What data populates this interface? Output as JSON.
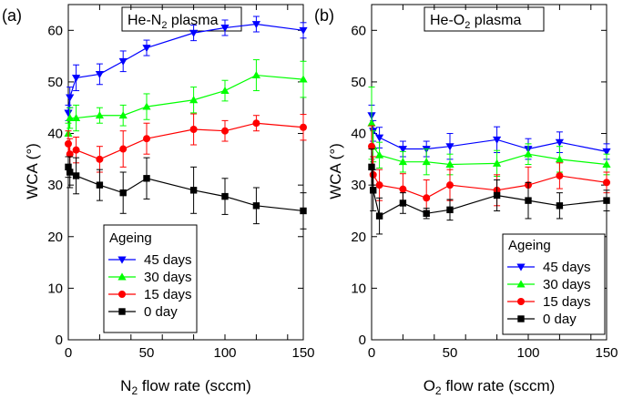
{
  "chart_data": [
    {
      "type": "line",
      "panel_label": "(a)",
      "title": {
        "prefix": "He-N",
        "sub": "2",
        "suffix": " plasma"
      },
      "xlabel": {
        "prefix": "N",
        "sub": "2",
        "suffix": " flow rate (sccm)"
      },
      "ylabel": "WCA (°)",
      "xlim": [
        0,
        150
      ],
      "ylim": [
        0,
        65
      ],
      "xticks": [
        0,
        20,
        40,
        60,
        80,
        100,
        120,
        140
      ],
      "xtick_labels": [
        "0",
        "50",
        "100",
        "150"
      ],
      "xtick_label_values": [
        0,
        50,
        100,
        150
      ],
      "yticks": [
        0,
        10,
        20,
        30,
        40,
        50,
        60
      ],
      "grid": false,
      "legend": {
        "title": "Ageing",
        "position": "bottom-left"
      },
      "series": [
        {
          "name": "45 days",
          "color": "#0000ff",
          "marker": "triangle-down",
          "x": [
            0,
            1,
            5,
            20,
            35,
            50,
            80,
            100,
            120,
            150
          ],
          "y": [
            44,
            47,
            50.8,
            51.5,
            54,
            56.6,
            59.5,
            60.5,
            61.2,
            60
          ],
          "err": [
            1.5,
            2.0,
            2.5,
            2.0,
            2.0,
            1.5,
            1.5,
            1.5,
            1.5,
            1.5
          ]
        },
        {
          "name": "30 days",
          "color": "#00ff00",
          "marker": "triangle-up",
          "x": [
            0,
            1,
            5,
            20,
            35,
            50,
            80,
            100,
            120,
            150
          ],
          "y": [
            40,
            43,
            43,
            43.5,
            43.5,
            45.2,
            46.5,
            48.3,
            51.3,
            50.5
          ],
          "err": [
            2.0,
            2.0,
            2.5,
            1.5,
            2.0,
            2.5,
            2.5,
            2.0,
            3.0,
            3.5
          ]
        },
        {
          "name": "15 days",
          "color": "#ff0000",
          "marker": "circle",
          "x": [
            0,
            1,
            5,
            20,
            35,
            50,
            80,
            100,
            120,
            150
          ],
          "y": [
            38,
            36,
            36.8,
            35,
            37,
            39,
            40.8,
            40.5,
            42,
            41.2
          ],
          "err": [
            2.5,
            3.0,
            2.5,
            2.5,
            3.5,
            3.0,
            3.0,
            2.0,
            1.5,
            2.5
          ]
        },
        {
          "name": "0 day",
          "color": "#000000",
          "marker": "square",
          "x": [
            0,
            1,
            5,
            20,
            35,
            50,
            80,
            100,
            120,
            150
          ],
          "y": [
            33.5,
            32.5,
            31.8,
            30,
            28.5,
            31.3,
            29,
            27.8,
            26,
            25
          ],
          "err": [
            2.0,
            3.0,
            3.5,
            3.0,
            4.0,
            4.0,
            4.5,
            3.5,
            3.5,
            3.5
          ]
        }
      ]
    },
    {
      "type": "line",
      "panel_label": "(b)",
      "title": {
        "prefix": "He-O",
        "sub": "2",
        "suffix": " plasma"
      },
      "xlabel": {
        "prefix": "O",
        "sub": "2",
        "suffix": " flow rate (sccm)"
      },
      "ylabel": "WCA (°)",
      "xlim": [
        0,
        150
      ],
      "ylim": [
        0,
        65
      ],
      "xticks": [
        0,
        20,
        40,
        60,
        80,
        100,
        120,
        140
      ],
      "xtick_labels": [
        "0",
        "50",
        "100",
        "150"
      ],
      "xtick_label_values": [
        0,
        50,
        100,
        150
      ],
      "yticks": [
        0,
        10,
        20,
        30,
        40,
        50,
        60
      ],
      "grid": false,
      "legend": {
        "title": "Ageing",
        "position": "bottom-right"
      },
      "series": [
        {
          "name": "45 days",
          "color": "#0000ff",
          "marker": "triangle-down",
          "x": [
            0,
            1,
            5,
            20,
            35,
            50,
            80,
            100,
            120,
            150
          ],
          "y": [
            43.5,
            40.5,
            39.2,
            37,
            37,
            37.5,
            38.8,
            37,
            38.3,
            36.5
          ],
          "err": [
            2.0,
            2.0,
            2.0,
            1.5,
            1.5,
            2.5,
            2.5,
            2.0,
            2.0,
            1.5
          ]
        },
        {
          "name": "30 days",
          "color": "#00ff00",
          "marker": "triangle-up",
          "x": [
            0,
            1,
            5,
            20,
            35,
            50,
            80,
            100,
            120,
            150
          ],
          "y": [
            42,
            37.5,
            35.8,
            34.5,
            34.5,
            34,
            34.2,
            36,
            35,
            34
          ],
          "err": [
            7.0,
            3.0,
            2.5,
            2.0,
            2.5,
            2.0,
            2.5,
            2.0,
            2.5,
            2.0
          ]
        },
        {
          "name": "15 days",
          "color": "#ff0000",
          "marker": "circle",
          "x": [
            0,
            1,
            5,
            20,
            35,
            50,
            80,
            100,
            120,
            150
          ],
          "y": [
            37.5,
            32,
            30,
            29.2,
            27.5,
            30,
            29,
            30,
            31.8,
            30.5
          ],
          "err": [
            4.0,
            3.5,
            3.0,
            3.0,
            3.5,
            3.0,
            3.0,
            3.5,
            2.5,
            2.0
          ]
        },
        {
          "name": "0 day",
          "color": "#000000",
          "marker": "square",
          "x": [
            0,
            1,
            5,
            20,
            35,
            50,
            80,
            100,
            120,
            150
          ],
          "y": [
            33.5,
            29,
            24,
            26.5,
            24.5,
            25.2,
            28,
            27,
            26,
            27
          ],
          "err": [
            3.5,
            4.0,
            3.5,
            2.0,
            1.0,
            2.0,
            3.0,
            3.5,
            2.5,
            2.0
          ]
        }
      ]
    }
  ]
}
